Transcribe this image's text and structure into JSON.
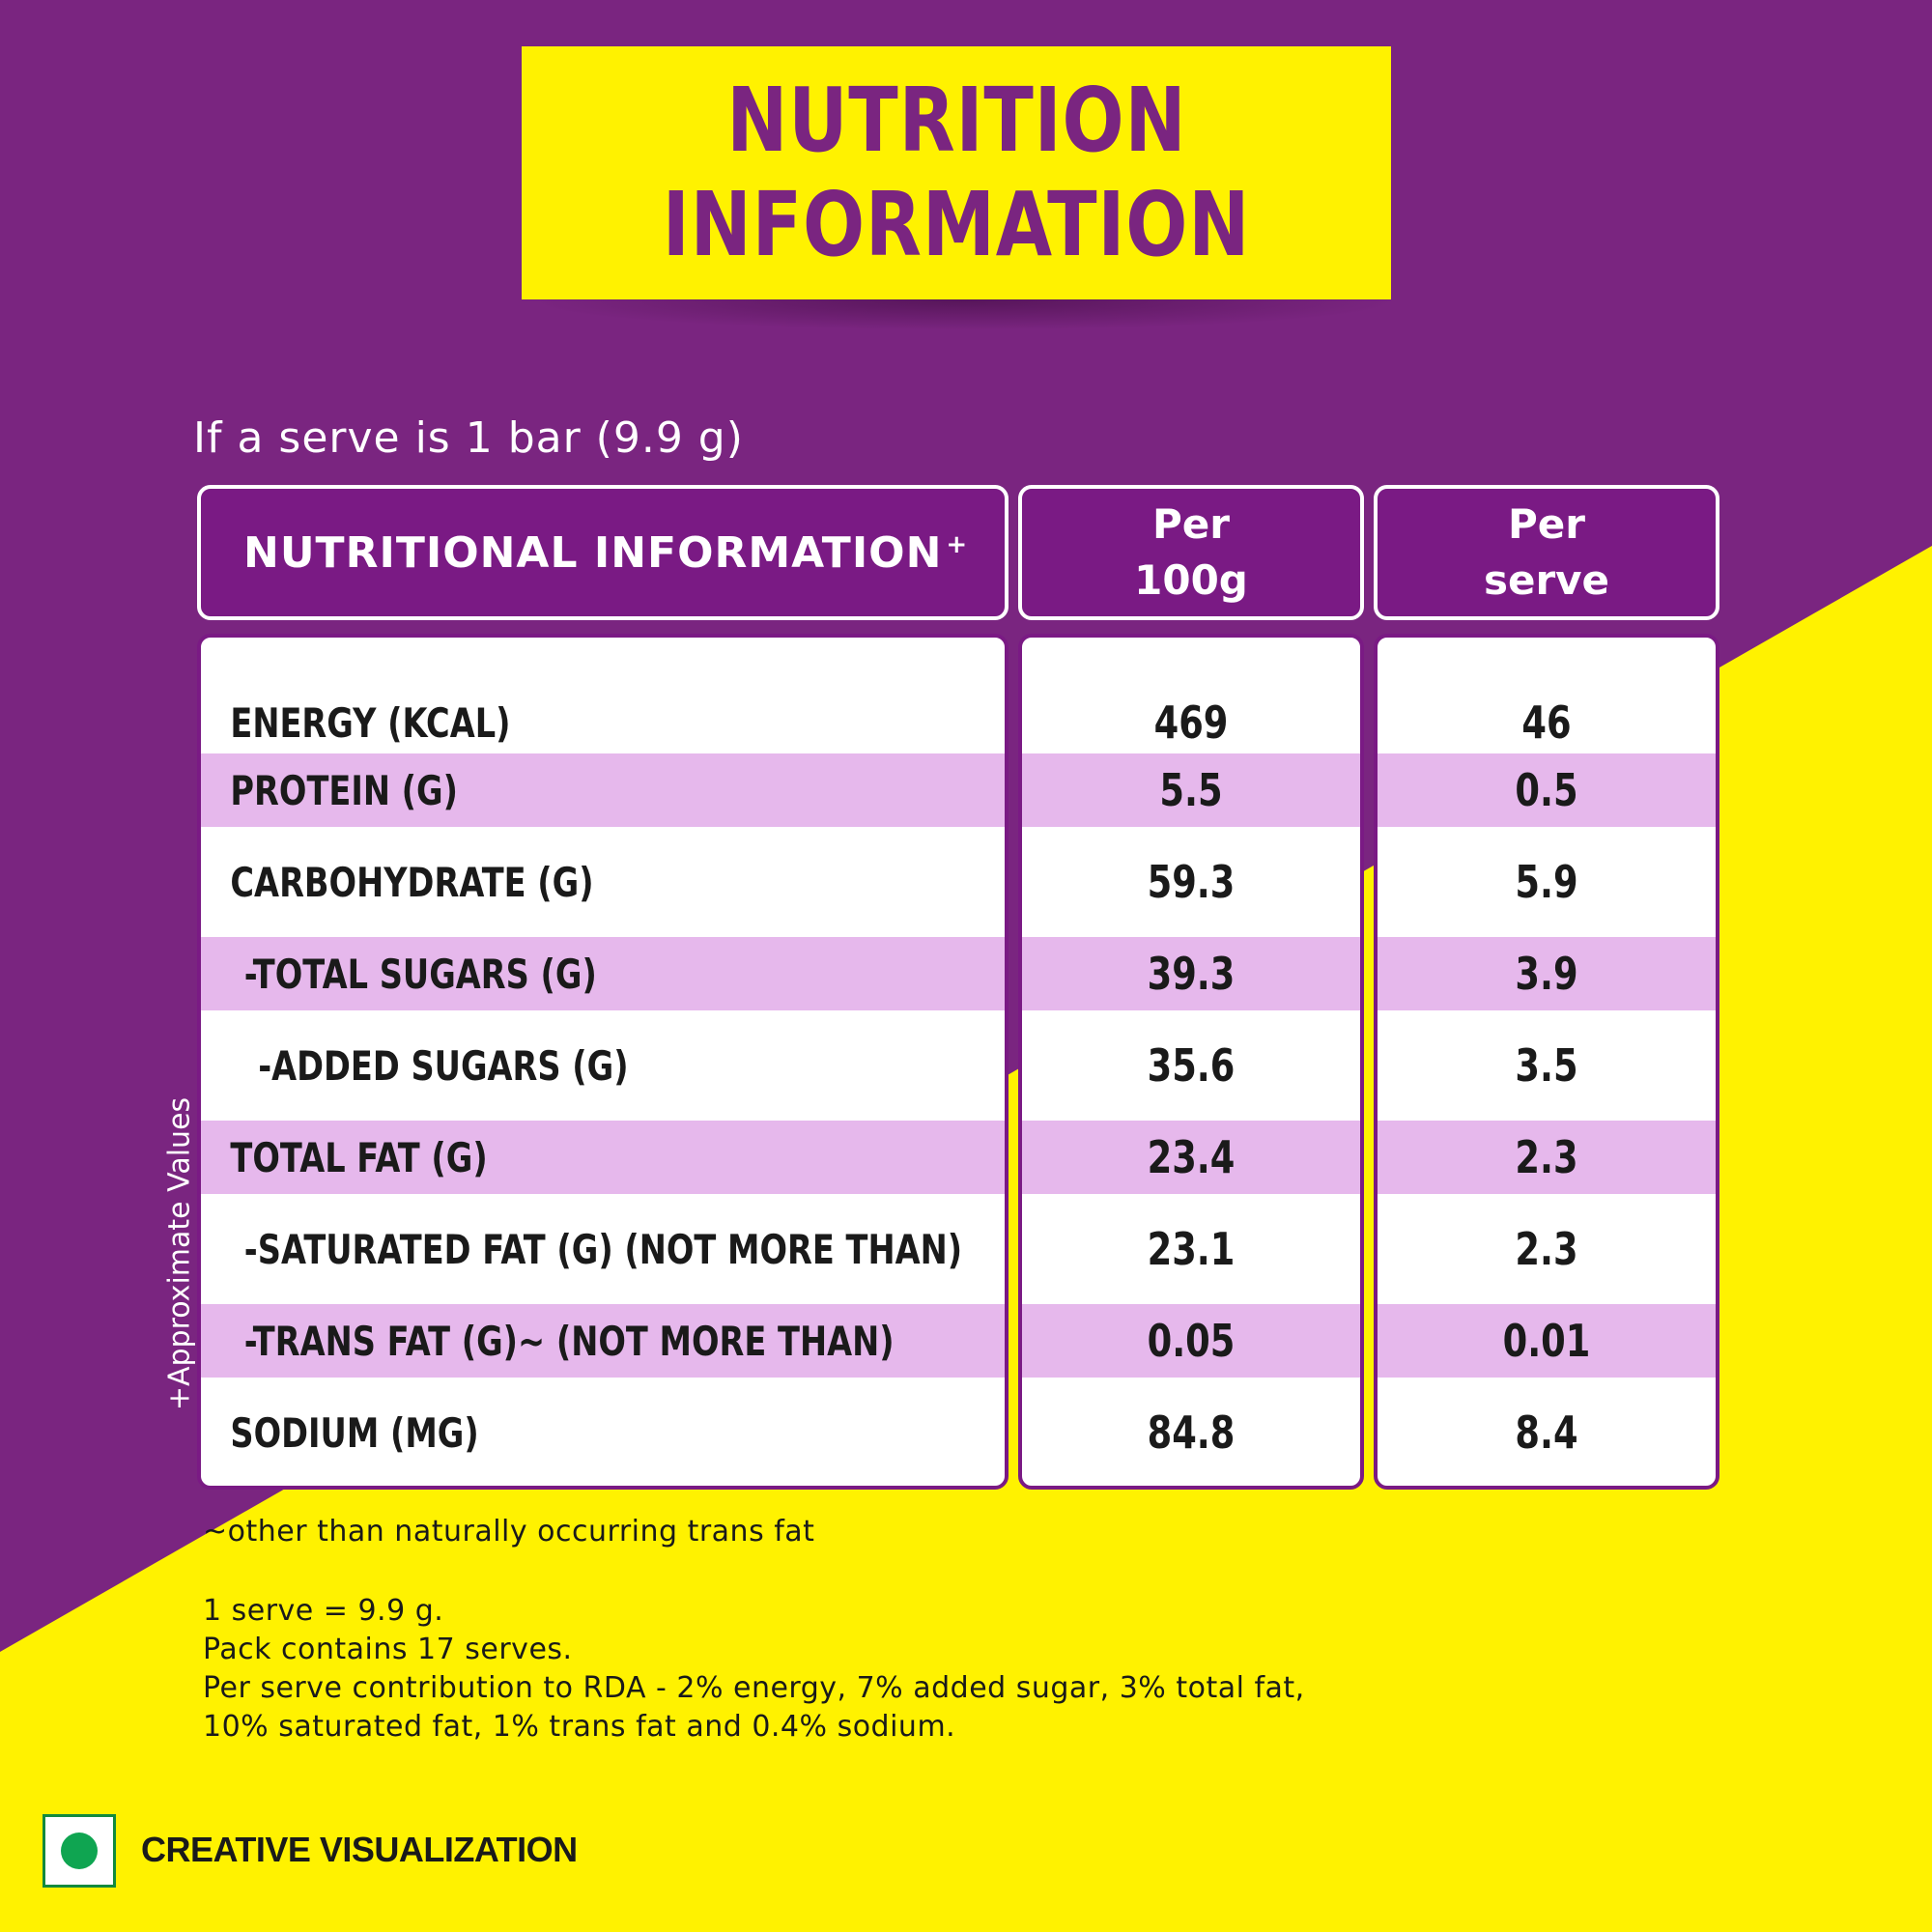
{
  "title": {
    "line1": "NUTRITION",
    "line2": "INFORMATION"
  },
  "serve_note": "If a serve is 1 bar (9.9 g)",
  "table": {
    "header_label": "NUTRITIONAL INFORMATION",
    "header_mark": "+",
    "col1_line1": "Per",
    "col1_line2": "100g",
    "col2_line1": "Per",
    "col2_line2": "serve",
    "rows": [
      {
        "label": "ENERGY (KCAL)",
        "per100": "469",
        "perserve": "46"
      },
      {
        "label": "PROTEIN (G)",
        "per100": "5.5",
        "perserve": "0.5"
      },
      {
        "label": "CARBOHYDRATE (G)",
        "per100": "59.3",
        "perserve": "5.9"
      },
      {
        "label": "-TOTAL SUGARS (G)",
        "per100": "39.3",
        "perserve": "3.9"
      },
      {
        "label": "-ADDED SUGARS (G)",
        "per100": "35.6",
        "perserve": "3.5"
      },
      {
        "label": "TOTAL FAT (G)",
        "per100": "23.4",
        "perserve": "2.3"
      },
      {
        "label": "-SATURATED FAT (G) (NOT MORE THAN)",
        "per100": "23.1",
        "perserve": "2.3"
      },
      {
        "label": "-TRANS FAT (G)~ (NOT MORE THAN)",
        "per100": "0.05",
        "perserve": "0.01"
      },
      {
        "label": "SODIUM (MG)",
        "per100": "84.8",
        "perserve": "8.4"
      }
    ]
  },
  "approx_note": "+Approximate Values",
  "footnotes": {
    "trans": "~other than naturally occurring trans fat",
    "serve_size": "1 serve = 9.9 g.",
    "pack": "Pack contains 17 serves.",
    "rda_line1": "Per serve contribution to RDA - 2% energy, 7% added sugar, 3% total fat,",
    "rda_line2": "10% saturated fat, 1% trans fat and 0.4% sodium."
  },
  "badge": {
    "text": "CREATIVE VISUALIZATION"
  },
  "colors": {
    "purple": "#7a2580",
    "yellow": "#fff200",
    "row_shade": "#e6b8ec",
    "veg_green": "#0fa551"
  }
}
